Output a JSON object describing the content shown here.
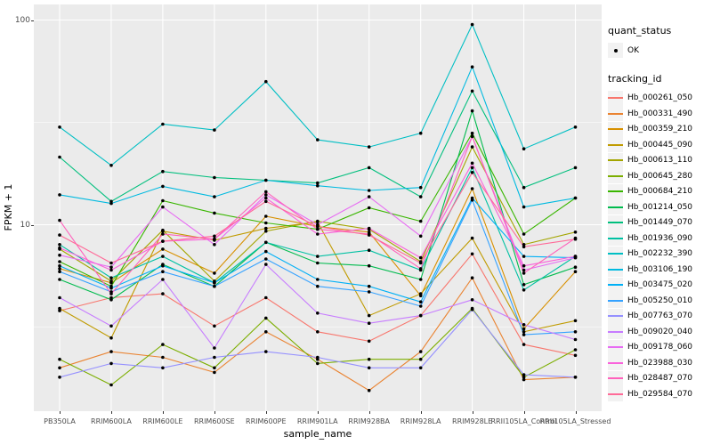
{
  "chart": {
    "y_axis_title": "FPKM + 1",
    "x_axis_title": "sample_name",
    "y_tick_labels": [
      "100",
      "10"
    ],
    "panel_bg_color": "#EBEBEB",
    "grid_color": "#FFFFFF",
    "point_color": "#000000"
  },
  "legend": {
    "quant_status_title": "quant_status",
    "quant_status_items": [
      {
        "label": "OK",
        "marker": "black-point"
      }
    ],
    "tracking_id_title": "tracking_id"
  },
  "chart_data": {
    "type": "line",
    "yscale": "log10",
    "ylim": [
      1.4,
      120
    ],
    "y_major_ticks": [
      10,
      100
    ],
    "y_minor_gridlines": [
      3.1623,
      31.623
    ],
    "grid": true,
    "legend_position": "right",
    "xlabel": "sample_name",
    "ylabel": "FPKM + 1",
    "categories": [
      "PB350LA",
      "RRIM600LA",
      "RRIM600LE",
      "RRIM600SE",
      "RRIM600PE",
      "RRIM901LA",
      "RRIM928BA",
      "RRIM928LA",
      "RRIM928LE",
      "RRII105LA_Control",
      "RRII105LA_Stressed"
    ],
    "series": [
      {
        "name": "Hb_000261_050",
        "color": "#F8766D",
        "values": [
          3.8,
          4.4,
          4.6,
          3.2,
          4.4,
          3.0,
          2.7,
          3.6,
          7.2,
          2.6,
          2.3
        ]
      },
      {
        "name": "Hb_000331_490",
        "color": "#EA8331",
        "values": [
          2.0,
          2.4,
          2.25,
          1.9,
          3.0,
          2.2,
          1.55,
          2.4,
          5.5,
          1.75,
          1.8
        ]
      },
      {
        "name": "Hb_000359_210",
        "color": "#D89000",
        "values": [
          6.1,
          5.2,
          7.6,
          5.8,
          11.0,
          9.8,
          9.2,
          4.5,
          15.0,
          3.1,
          5.9
        ]
      },
      {
        "name": "Hb_000445_090",
        "color": "#C09B00",
        "values": [
          3.9,
          2.8,
          9.3,
          8.4,
          9.6,
          10.3,
          3.6,
          4.6,
          8.6,
          3.0,
          3.4
        ]
      },
      {
        "name": "Hb_000613_110",
        "color": "#A3A500",
        "values": [
          7.6,
          5.3,
          9.4,
          5.3,
          9.3,
          10.4,
          9.5,
          6.6,
          24.0,
          8.0,
          9.2
        ]
      },
      {
        "name": "Hb_000645_280",
        "color": "#7CAE00",
        "values": [
          2.2,
          1.65,
          2.6,
          2.0,
          3.5,
          2.1,
          2.2,
          2.2,
          3.9,
          1.8,
          2.45
        ]
      },
      {
        "name": "Hb_000684_210",
        "color": "#39B600",
        "values": [
          6.6,
          5.0,
          13.1,
          11.4,
          10.2,
          9.5,
          12.1,
          10.4,
          28.0,
          9.0,
          13.5
        ]
      },
      {
        "name": "Hb_001214_050",
        "color": "#00BB4E",
        "values": [
          5.4,
          4.3,
          6.4,
          5.0,
          8.2,
          6.5,
          6.3,
          5.4,
          36.0,
          5.1,
          6.2
        ]
      },
      {
        "name": "Hb_001449_070",
        "color": "#00BF7D",
        "values": [
          21.4,
          13.0,
          18.2,
          17.0,
          16.5,
          16.0,
          19.0,
          13.7,
          45.0,
          15.2,
          19.0
        ]
      },
      {
        "name": "Hb_001936_090",
        "color": "#00C1A3",
        "values": [
          8.0,
          5.5,
          7.0,
          5.2,
          8.2,
          7.0,
          7.5,
          6.0,
          19.0,
          4.8,
          7.0
        ]
      },
      {
        "name": "Hb_002232_390",
        "color": "#00BFC4",
        "values": [
          30.0,
          19.5,
          31.0,
          29.0,
          50.0,
          26.0,
          24.0,
          28.0,
          95.0,
          23.5,
          30.0
        ]
      },
      {
        "name": "Hb_003106_190",
        "color": "#00BAE0",
        "values": [
          14.0,
          12.7,
          15.4,
          13.7,
          16.5,
          15.5,
          14.7,
          15.2,
          59.0,
          12.2,
          13.5
        ]
      },
      {
        "name": "Hb_003475_020",
        "color": "#00B0F6",
        "values": [
          6.3,
          4.9,
          6.3,
          5.2,
          7.4,
          5.4,
          5.0,
          4.2,
          13.5,
          7.0,
          6.9
        ]
      },
      {
        "name": "Hb_005250_010",
        "color": "#35A2FF",
        "values": [
          5.9,
          4.7,
          5.9,
          5.0,
          6.8,
          5.0,
          4.7,
          4.0,
          13.2,
          2.9,
          3.0
        ]
      },
      {
        "name": "Hb_007763_070",
        "color": "#9590FF",
        "values": [
          1.8,
          2.1,
          2.0,
          2.25,
          2.4,
          2.25,
          2.0,
          2.0,
          3.85,
          1.85,
          1.8
        ]
      },
      {
        "name": "Hb_009020_040",
        "color": "#C77CFF",
        "values": [
          4.4,
          3.2,
          5.4,
          2.5,
          6.4,
          3.7,
          3.3,
          3.6,
          4.3,
          3.25,
          2.75
        ]
      },
      {
        "name": "Hb_009178_060",
        "color": "#E76BF3",
        "values": [
          7.1,
          6.2,
          12.2,
          8.0,
          14.0,
          10.0,
          13.7,
          8.8,
          27.0,
          6.0,
          6.9
        ]
      },
      {
        "name": "Hb_023988_030",
        "color": "#FA62DB",
        "values": [
          7.7,
          6.0,
          8.3,
          8.5,
          13.5,
          9.0,
          9.6,
          6.9,
          20.0,
          6.3,
          7.0
        ]
      },
      {
        "name": "Hb_028487_070",
        "color": "#FF62BC",
        "values": [
          10.5,
          4.6,
          9.0,
          8.5,
          14.5,
          9.5,
          9.0,
          6.1,
          27.0,
          5.8,
          8.6
        ]
      },
      {
        "name": "Hb_029584_070",
        "color": "#FF6A98",
        "values": [
          8.9,
          6.5,
          8.3,
          8.8,
          13.0,
          9.8,
          8.9,
          6.5,
          18.0,
          7.8,
          8.5
        ]
      }
    ]
  }
}
